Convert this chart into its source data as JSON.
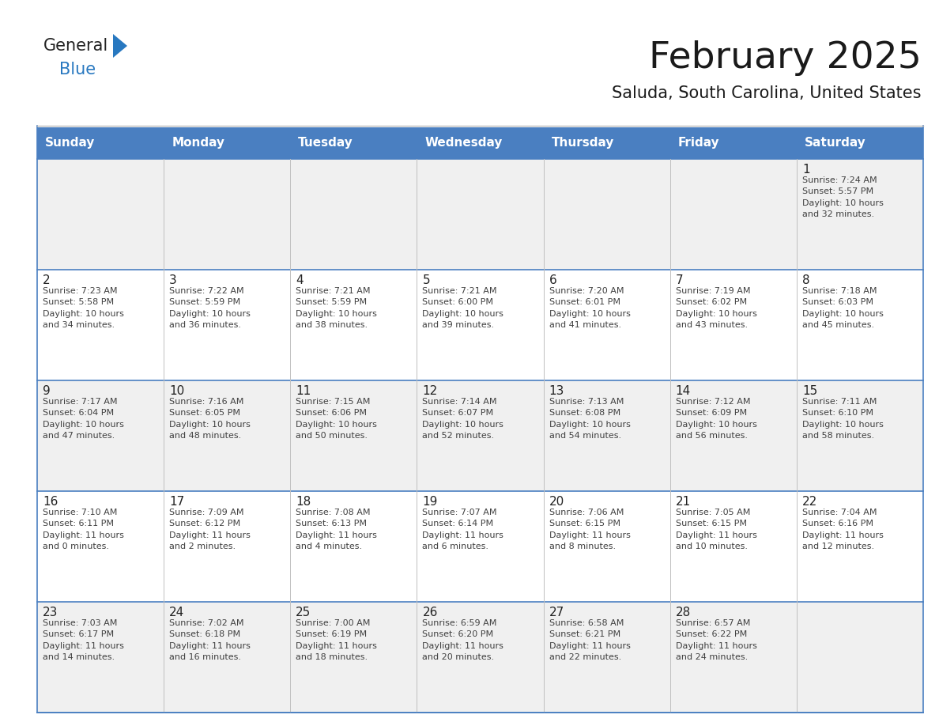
{
  "title": "February 2025",
  "subtitle": "Saluda, South Carolina, United States",
  "days_of_week": [
    "Sunday",
    "Monday",
    "Tuesday",
    "Wednesday",
    "Thursday",
    "Friday",
    "Saturday"
  ],
  "header_bg": "#4a7fc1",
  "header_text_color": "#ffffff",
  "cell_bg_odd": "#f0f0f0",
  "cell_bg_even": "#ffffff",
  "row_sep_color": "#4a7fc1",
  "col_sep_color": "#c0c0c0",
  "text_color": "#404040",
  "day_num_color": "#222222",
  "title_color": "#1a1a1a",
  "subtitle_color": "#1a1a1a",
  "logo_general_color": "#222222",
  "logo_blue_color": "#2878c0",
  "calendar": [
    [
      {
        "day": null,
        "info": ""
      },
      {
        "day": null,
        "info": ""
      },
      {
        "day": null,
        "info": ""
      },
      {
        "day": null,
        "info": ""
      },
      {
        "day": null,
        "info": ""
      },
      {
        "day": null,
        "info": ""
      },
      {
        "day": 1,
        "info": "Sunrise: 7:24 AM\nSunset: 5:57 PM\nDaylight: 10 hours\nand 32 minutes."
      }
    ],
    [
      {
        "day": 2,
        "info": "Sunrise: 7:23 AM\nSunset: 5:58 PM\nDaylight: 10 hours\nand 34 minutes."
      },
      {
        "day": 3,
        "info": "Sunrise: 7:22 AM\nSunset: 5:59 PM\nDaylight: 10 hours\nand 36 minutes."
      },
      {
        "day": 4,
        "info": "Sunrise: 7:21 AM\nSunset: 5:59 PM\nDaylight: 10 hours\nand 38 minutes."
      },
      {
        "day": 5,
        "info": "Sunrise: 7:21 AM\nSunset: 6:00 PM\nDaylight: 10 hours\nand 39 minutes."
      },
      {
        "day": 6,
        "info": "Sunrise: 7:20 AM\nSunset: 6:01 PM\nDaylight: 10 hours\nand 41 minutes."
      },
      {
        "day": 7,
        "info": "Sunrise: 7:19 AM\nSunset: 6:02 PM\nDaylight: 10 hours\nand 43 minutes."
      },
      {
        "day": 8,
        "info": "Sunrise: 7:18 AM\nSunset: 6:03 PM\nDaylight: 10 hours\nand 45 minutes."
      }
    ],
    [
      {
        "day": 9,
        "info": "Sunrise: 7:17 AM\nSunset: 6:04 PM\nDaylight: 10 hours\nand 47 minutes."
      },
      {
        "day": 10,
        "info": "Sunrise: 7:16 AM\nSunset: 6:05 PM\nDaylight: 10 hours\nand 48 minutes."
      },
      {
        "day": 11,
        "info": "Sunrise: 7:15 AM\nSunset: 6:06 PM\nDaylight: 10 hours\nand 50 minutes."
      },
      {
        "day": 12,
        "info": "Sunrise: 7:14 AM\nSunset: 6:07 PM\nDaylight: 10 hours\nand 52 minutes."
      },
      {
        "day": 13,
        "info": "Sunrise: 7:13 AM\nSunset: 6:08 PM\nDaylight: 10 hours\nand 54 minutes."
      },
      {
        "day": 14,
        "info": "Sunrise: 7:12 AM\nSunset: 6:09 PM\nDaylight: 10 hours\nand 56 minutes."
      },
      {
        "day": 15,
        "info": "Sunrise: 7:11 AM\nSunset: 6:10 PM\nDaylight: 10 hours\nand 58 minutes."
      }
    ],
    [
      {
        "day": 16,
        "info": "Sunrise: 7:10 AM\nSunset: 6:11 PM\nDaylight: 11 hours\nand 0 minutes."
      },
      {
        "day": 17,
        "info": "Sunrise: 7:09 AM\nSunset: 6:12 PM\nDaylight: 11 hours\nand 2 minutes."
      },
      {
        "day": 18,
        "info": "Sunrise: 7:08 AM\nSunset: 6:13 PM\nDaylight: 11 hours\nand 4 minutes."
      },
      {
        "day": 19,
        "info": "Sunrise: 7:07 AM\nSunset: 6:14 PM\nDaylight: 11 hours\nand 6 minutes."
      },
      {
        "day": 20,
        "info": "Sunrise: 7:06 AM\nSunset: 6:15 PM\nDaylight: 11 hours\nand 8 minutes."
      },
      {
        "day": 21,
        "info": "Sunrise: 7:05 AM\nSunset: 6:15 PM\nDaylight: 11 hours\nand 10 minutes."
      },
      {
        "day": 22,
        "info": "Sunrise: 7:04 AM\nSunset: 6:16 PM\nDaylight: 11 hours\nand 12 minutes."
      }
    ],
    [
      {
        "day": 23,
        "info": "Sunrise: 7:03 AM\nSunset: 6:17 PM\nDaylight: 11 hours\nand 14 minutes."
      },
      {
        "day": 24,
        "info": "Sunrise: 7:02 AM\nSunset: 6:18 PM\nDaylight: 11 hours\nand 16 minutes."
      },
      {
        "day": 25,
        "info": "Sunrise: 7:00 AM\nSunset: 6:19 PM\nDaylight: 11 hours\nand 18 minutes."
      },
      {
        "day": 26,
        "info": "Sunrise: 6:59 AM\nSunset: 6:20 PM\nDaylight: 11 hours\nand 20 minutes."
      },
      {
        "day": 27,
        "info": "Sunrise: 6:58 AM\nSunset: 6:21 PM\nDaylight: 11 hours\nand 22 minutes."
      },
      {
        "day": 28,
        "info": "Sunrise: 6:57 AM\nSunset: 6:22 PM\nDaylight: 11 hours\nand 24 minutes."
      },
      {
        "day": null,
        "info": ""
      }
    ]
  ]
}
